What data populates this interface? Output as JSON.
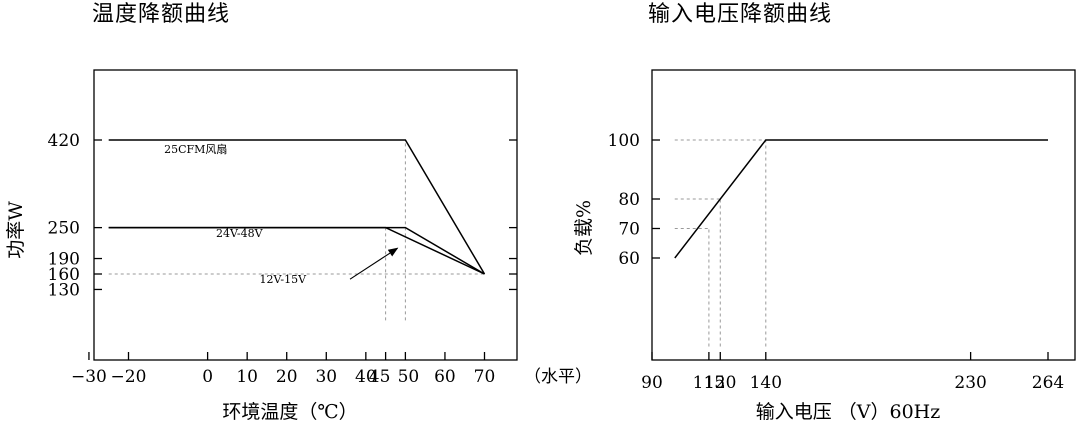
{
  "chart_data": [
    {
      "type": "line",
      "title": "温度降额曲线",
      "xlabel": "环境温度（℃）",
      "ylabel": "功率W",
      "x_unit_label": "（水平）",
      "xlim": [
        -30,
        80
      ],
      "ylim": [
        70,
        520
      ],
      "x_ticks": [
        -30,
        -20,
        0,
        10,
        20,
        30,
        40,
        45,
        50,
        60,
        70
      ],
      "y_ticks": [
        130,
        160,
        190,
        250,
        420
      ],
      "grid": false,
      "series": [
        {
          "name": "25CFM风扇",
          "x": [
            -25,
            50,
            70
          ],
          "y": [
            420,
            420,
            160
          ]
        },
        {
          "name": "24V-48V",
          "x": [
            -25,
            50,
            70
          ],
          "y": [
            250,
            250,
            160
          ]
        },
        {
          "name": "12V-15V",
          "x": [
            -25,
            45,
            70
          ],
          "y": [
            250,
            250,
            160
          ]
        }
      ],
      "reference_lines": [
        {
          "x": [
            -25,
            70
          ],
          "y": [
            160,
            160
          ]
        },
        {
          "x": [
            45,
            45
          ],
          "y": [
            70,
            250
          ]
        },
        {
          "x": [
            50,
            50
          ],
          "y": [
            70,
            420
          ]
        }
      ],
      "annotations": [
        {
          "text": "25CFM风扇",
          "x": -3,
          "y": 395
        },
        {
          "text": "24V-48V",
          "x": 8,
          "y": 232
        },
        {
          "text": "12V-15V",
          "x": 19,
          "y": 143
        }
      ],
      "arrow": {
        "from": [
          36,
          150
        ],
        "to": [
          48,
          210
        ]
      }
    },
    {
      "type": "line",
      "title": "输入电压降额曲线",
      "xlabel": "输入电压 （V）60Hz",
      "ylabel": "负载%",
      "xlim": [
        90,
        270
      ],
      "ylim": [
        30,
        135
      ],
      "x_ticks": [
        90,
        115,
        120,
        140,
        230,
        264
      ],
      "y_ticks": [
        60,
        70,
        80,
        100
      ],
      "grid": false,
      "series": [
        {
          "name": "",
          "x": [
            100,
            140,
            264
          ],
          "y": [
            60,
            100,
            100
          ]
        }
      ],
      "reference_lines": [
        {
          "x": [
            100,
            140
          ],
          "y": [
            100,
            100
          ]
        },
        {
          "x": [
            100,
            120
          ],
          "y": [
            80,
            80
          ]
        },
        {
          "x": [
            100,
            115
          ],
          "y": [
            70,
            70
          ]
        },
        {
          "x": [
            115,
            115
          ],
          "y": [
            30,
            70
          ]
        },
        {
          "x": [
            120,
            120
          ],
          "y": [
            30,
            80
          ]
        },
        {
          "x": [
            140,
            140
          ],
          "y": [
            30,
            100
          ]
        }
      ]
    }
  ]
}
